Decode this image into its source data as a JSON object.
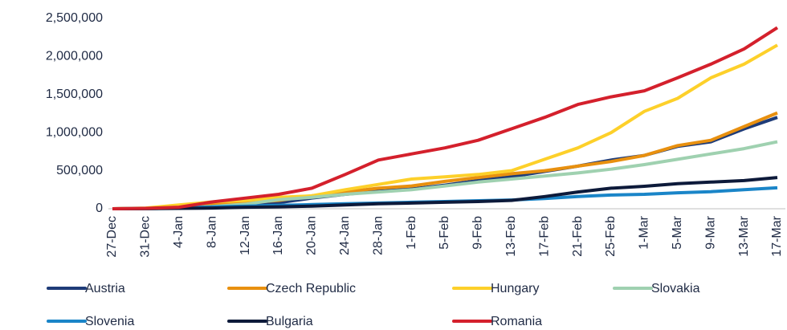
{
  "chart_data": {
    "type": "line",
    "categories": [
      "27-Dec",
      "31-Dec",
      "4-Jan",
      "8-Jan",
      "12-Jan",
      "16-Jan",
      "20-Jan",
      "24-Jan",
      "28-Jan",
      "1-Feb",
      "5-Feb",
      "9-Feb",
      "13-Feb",
      "17-Feb",
      "21-Feb",
      "25-Feb",
      "1-Mar",
      "5-Mar",
      "9-Mar",
      "13-Mar",
      "17-Mar"
    ],
    "ylim": [
      0,
      2500000
    ],
    "yticks": [
      0,
      {
        "value": 500000,
        "label": "500,000"
      },
      {
        "value": 1000000,
        "label": "1,000,000"
      },
      {
        "value": 1500000,
        "label": "1,500,000"
      },
      {
        "value": 2000000,
        "label": "2,000,000"
      },
      {
        "value": 2500000,
        "label": "2,500,000"
      }
    ],
    "grid": false,
    "legend": "bottom",
    "series": [
      {
        "name": "Austria",
        "color": "#1f3c78",
        "values": [
          0,
          3000,
          10000,
          20000,
          40000,
          80000,
          140000,
          190000,
          230000,
          260000,
          310000,
          370000,
          420000,
          490000,
          560000,
          640000,
          700000,
          820000,
          880000,
          1050000,
          1200000
        ]
      },
      {
        "name": "Czech Republic",
        "color": "#e8900f",
        "values": [
          0,
          5000,
          20000,
          50000,
          80000,
          110000,
          170000,
          220000,
          270000,
          300000,
          360000,
          410000,
          460000,
          500000,
          560000,
          620000,
          700000,
          830000,
          900000,
          1080000,
          1260000
        ]
      },
      {
        "name": "Hungary",
        "color": "#fdd02a",
        "values": [
          0,
          10000,
          50000,
          90000,
          110000,
          150000,
          170000,
          250000,
          320000,
          390000,
          420000,
          450000,
          500000,
          650000,
          800000,
          1000000,
          1280000,
          1450000,
          1720000,
          1900000,
          2150000
        ]
      },
      {
        "name": "Slovakia",
        "color": "#9fd1b0",
        "values": [
          0,
          3000,
          10000,
          30000,
          60000,
          120000,
          150000,
          190000,
          220000,
          250000,
          300000,
          350000,
          390000,
          430000,
          470000,
          520000,
          580000,
          650000,
          720000,
          790000,
          880000
        ]
      },
      {
        "name": "Slovenia",
        "color": "#1a85c8",
        "values": [
          0,
          3000,
          10000,
          25000,
          35000,
          45000,
          55000,
          65000,
          75000,
          85000,
          95000,
          105000,
          115000,
          135000,
          160000,
          180000,
          190000,
          210000,
          225000,
          250000,
          275000
        ]
      },
      {
        "name": "Bulgaria",
        "color": "#0d1a3a",
        "values": [
          0,
          1000,
          5000,
          10000,
          20000,
          25000,
          35000,
          50000,
          65000,
          75000,
          85000,
          95000,
          110000,
          160000,
          220000,
          270000,
          295000,
          330000,
          350000,
          370000,
          410000
        ]
      },
      {
        "name": "Romania",
        "color": "#d4202c",
        "values": [
          0,
          5000,
          20000,
          90000,
          140000,
          190000,
          270000,
          450000,
          640000,
          720000,
          800000,
          900000,
          1050000,
          1200000,
          1370000,
          1470000,
          1550000,
          1720000,
          1900000,
          2100000,
          2380000
        ]
      }
    ]
  }
}
